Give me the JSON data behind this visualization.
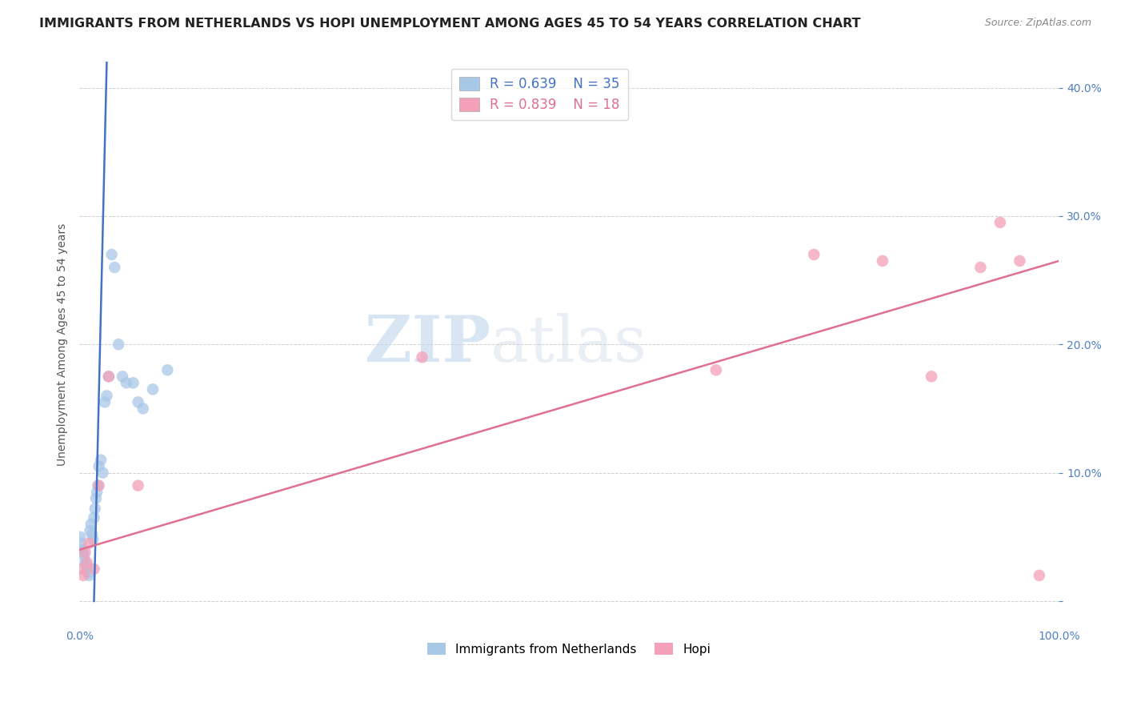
{
  "title": "IMMIGRANTS FROM NETHERLANDS VS HOPI UNEMPLOYMENT AMONG AGES 45 TO 54 YEARS CORRELATION CHART",
  "source": "Source: ZipAtlas.com",
  "ylabel": "Unemployment Among Ages 45 to 54 years",
  "xlim": [
    0,
    1.0
  ],
  "ylim": [
    -0.02,
    0.42
  ],
  "xticks": [
    0.0,
    0.2,
    0.4,
    0.6,
    0.8,
    1.0
  ],
  "yticks": [
    0.0,
    0.1,
    0.2,
    0.3,
    0.4
  ],
  "xtick_labels": [
    "0.0%",
    "",
    "",
    "",
    "",
    "100.0%"
  ],
  "ytick_labels": [
    "",
    "10.0%",
    "20.0%",
    "30.0%",
    "40.0%"
  ],
  "blue_r": 0.639,
  "blue_n": 35,
  "pink_r": 0.839,
  "pink_n": 18,
  "blue_color": "#a8c8e8",
  "blue_line_color": "#4472c4",
  "pink_color": "#f4a0b8",
  "pink_line_color": "#e07090",
  "watermark_zip": "ZIP",
  "watermark_atlas": "atlas",
  "blue_scatter_x": [
    0.001,
    0.002,
    0.003,
    0.004,
    0.005,
    0.006,
    0.007,
    0.008,
    0.009,
    0.01,
    0.011,
    0.012,
    0.013,
    0.014,
    0.015,
    0.016,
    0.017,
    0.018,
    0.019,
    0.02,
    0.022,
    0.024,
    0.026,
    0.028,
    0.03,
    0.033,
    0.036,
    0.04,
    0.044,
    0.048,
    0.055,
    0.06,
    0.065,
    0.075,
    0.09
  ],
  "blue_scatter_y": [
    0.05,
    0.045,
    0.04,
    0.038,
    0.035,
    0.03,
    0.028,
    0.025,
    0.022,
    0.02,
    0.055,
    0.06,
    0.052,
    0.048,
    0.065,
    0.072,
    0.08,
    0.085,
    0.09,
    0.105,
    0.11,
    0.1,
    0.155,
    0.16,
    0.175,
    0.27,
    0.26,
    0.2,
    0.175,
    0.17,
    0.17,
    0.155,
    0.15,
    0.165,
    0.18
  ],
  "pink_scatter_x": [
    0.002,
    0.004,
    0.006,
    0.008,
    0.01,
    0.015,
    0.02,
    0.03,
    0.06,
    0.35,
    0.65,
    0.75,
    0.82,
    0.87,
    0.92,
    0.94,
    0.96,
    0.98
  ],
  "pink_scatter_y": [
    0.025,
    0.02,
    0.038,
    0.03,
    0.045,
    0.025,
    0.09,
    0.175,
    0.09,
    0.19,
    0.18,
    0.27,
    0.265,
    0.175,
    0.26,
    0.295,
    0.265,
    0.02
  ],
  "blue_line_x1": 0.015,
  "blue_line_y1": 0.0,
  "blue_line_x2": 0.028,
  "blue_line_y2": 0.42,
  "pink_line_x1": 0.0,
  "pink_line_y1": 0.04,
  "pink_line_x2": 1.0,
  "pink_line_y2": 0.265,
  "background_color": "#ffffff",
  "grid_color": "#d0d0d0",
  "title_fontsize": 11.5,
  "axis_label_fontsize": 10,
  "tick_fontsize": 10,
  "legend_fontsize": 12
}
